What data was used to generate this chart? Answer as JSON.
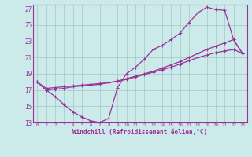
{
  "xlabel": "Windchill (Refroidissement éolien,°C)",
  "background_color": "#cceaea",
  "grid_color": "#aacccc",
  "line_color": "#993399",
  "xlim": [
    -0.5,
    23.5
  ],
  "ylim": [
    13,
    27.5
  ],
  "yticks": [
    13,
    15,
    17,
    19,
    21,
    23,
    25,
    27
  ],
  "xticks": [
    0,
    1,
    2,
    3,
    4,
    5,
    6,
    7,
    8,
    9,
    10,
    11,
    12,
    13,
    14,
    15,
    16,
    17,
    18,
    19,
    20,
    21,
    22,
    23
  ],
  "line1_x": [
    0,
    1,
    2,
    3,
    4,
    5,
    6,
    7,
    8,
    9,
    10,
    11,
    12,
    13,
    14,
    15,
    16,
    17,
    18,
    19,
    20,
    21,
    22,
    23
  ],
  "line1_y": [
    18.0,
    17.0,
    16.2,
    15.2,
    14.3,
    13.7,
    13.2,
    13.0,
    13.5,
    17.3,
    19.0,
    19.8,
    20.8,
    22.0,
    22.5,
    23.2,
    24.0,
    25.3,
    26.5,
    27.2,
    26.9,
    26.8,
    23.2,
    21.5
  ],
  "line2_x": [
    0,
    1,
    2,
    3,
    4,
    5,
    6,
    7,
    8,
    9,
    10,
    11,
    12,
    13,
    14,
    15,
    16,
    17,
    18,
    19,
    20,
    21,
    22,
    23
  ],
  "line2_y": [
    18.0,
    17.0,
    17.1,
    17.2,
    17.4,
    17.5,
    17.6,
    17.7,
    17.9,
    18.1,
    18.4,
    18.7,
    19.0,
    19.3,
    19.7,
    20.1,
    20.5,
    21.0,
    21.5,
    22.0,
    22.4,
    22.8,
    23.2,
    21.5
  ],
  "line3_x": [
    0,
    1,
    2,
    3,
    4,
    5,
    6,
    7,
    8,
    9,
    10,
    11,
    12,
    13,
    14,
    15,
    16,
    17,
    18,
    19,
    20,
    21,
    22,
    23
  ],
  "line3_y": [
    18.0,
    17.2,
    17.3,
    17.4,
    17.5,
    17.6,
    17.7,
    17.8,
    17.9,
    18.1,
    18.3,
    18.6,
    18.9,
    19.2,
    19.5,
    19.8,
    20.2,
    20.6,
    21.0,
    21.3,
    21.6,
    21.8,
    22.0,
    21.5
  ]
}
